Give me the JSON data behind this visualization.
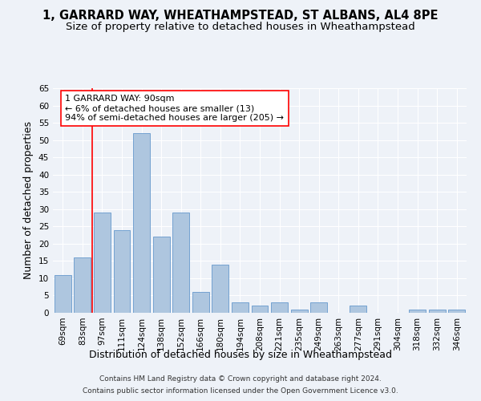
{
  "title_line1": "1, GARRARD WAY, WHEATHAMPSTEAD, ST ALBANS, AL4 8PE",
  "title_line2": "Size of property relative to detached houses in Wheathampstead",
  "xlabel": "Distribution of detached houses by size in Wheathampstead",
  "ylabel": "Number of detached properties",
  "categories": [
    "69sqm",
    "83sqm",
    "97sqm",
    "111sqm",
    "124sqm",
    "138sqm",
    "152sqm",
    "166sqm",
    "180sqm",
    "194sqm",
    "208sqm",
    "221sqm",
    "235sqm",
    "249sqm",
    "263sqm",
    "277sqm",
    "291sqm",
    "304sqm",
    "318sqm",
    "332sqm",
    "346sqm"
  ],
  "values": [
    11,
    16,
    29,
    24,
    52,
    22,
    29,
    6,
    14,
    3,
    2,
    3,
    1,
    3,
    0,
    2,
    0,
    0,
    1,
    1,
    1
  ],
  "bar_color": "#aec6df",
  "bar_edgecolor": "#6699cc",
  "annotation_line1": "1 GARRARD WAY: 90sqm",
  "annotation_line2": "← 6% of detached houses are smaller (13)",
  "annotation_line3": "94% of semi-detached houses are larger (205) →",
  "vline_x": 1.5,
  "footer_line1": "Contains HM Land Registry data © Crown copyright and database right 2024.",
  "footer_line2": "Contains public sector information licensed under the Open Government Licence v3.0.",
  "ylim": [
    0,
    65
  ],
  "yticks": [
    0,
    5,
    10,
    15,
    20,
    25,
    30,
    35,
    40,
    45,
    50,
    55,
    60,
    65
  ],
  "bg_color": "#eef2f8",
  "grid_color": "#ffffff",
  "title_fontsize": 10.5,
  "subtitle_fontsize": 9.5,
  "annotation_fontsize": 8,
  "ylabel_fontsize": 9,
  "xlabel_fontsize": 9,
  "tick_fontsize": 7.5,
  "footer_fontsize": 6.5
}
